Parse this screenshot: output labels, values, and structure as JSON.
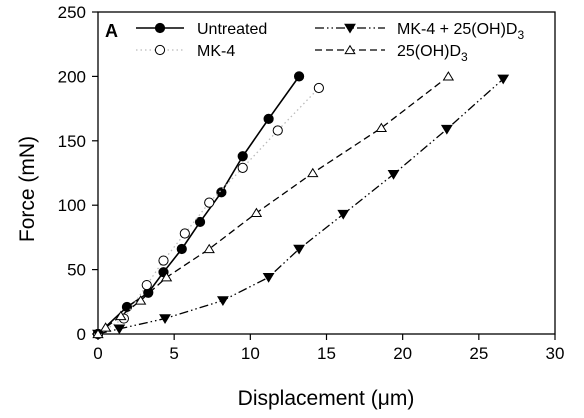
{
  "chart_data": {
    "type": "line",
    "panel_label": "A",
    "xlabel": "Displacement (μm)",
    "ylabel": "Force (mN)",
    "xlim": [
      0,
      30
    ],
    "ylim": [
      0,
      250
    ],
    "xticks": [
      0,
      5,
      10,
      15,
      20,
      25,
      30
    ],
    "yticks": [
      0,
      50,
      100,
      150,
      200,
      250
    ],
    "grid": false,
    "legend_position": "top",
    "series": [
      {
        "name": "Untreated",
        "name_base": "Untreated",
        "name_sub": "",
        "name_tail": "",
        "marker": "filled-circle",
        "line": "solid",
        "color": "#000000",
        "x": [
          0,
          1.9,
          3.3,
          4.3,
          5.5,
          6.7,
          8.1,
          9.5,
          11.2,
          13.2
        ],
        "y": [
          0,
          21,
          32,
          48,
          66,
          87,
          110,
          138,
          167,
          200
        ]
      },
      {
        "name": "MK-4",
        "name_base": "MK-4",
        "name_sub": "",
        "name_tail": "",
        "marker": "open-circle",
        "line": "dotted",
        "color": "#bbbbbb",
        "x": [
          0,
          1.7,
          3.2,
          4.3,
          5.7,
          7.3,
          9.5,
          11.8,
          14.5
        ],
        "y": [
          0,
          12,
          38,
          57,
          78,
          102,
          129,
          158,
          191
        ]
      },
      {
        "name": "MK-4 + 25(OH)D3",
        "name_base": "MK-4 + 25(OH)D",
        "name_sub": "3",
        "name_tail": "",
        "marker": "filled-triangle-down",
        "line": "dash-dot-dot",
        "color": "#000000",
        "x": [
          0,
          1.4,
          4.4,
          8.2,
          11.2,
          13.2,
          16.1,
          19.4,
          22.9,
          26.6
        ],
        "y": [
          0,
          4,
          12,
          26,
          44,
          66,
          93,
          124,
          159,
          198
        ]
      },
      {
        "name": "25(OH)D3",
        "name_base": "25(OH)D",
        "name_sub": "3",
        "name_tail": "",
        "marker": "open-triangle-up",
        "line": "dashed",
        "color": "#000000",
        "x": [
          0,
          0.5,
          1.5,
          2.8,
          4.5,
          7.3,
          10.4,
          14.1,
          18.6,
          23.0
        ],
        "y": [
          0,
          5,
          14,
          26,
          44,
          66,
          94,
          125,
          160,
          200
        ]
      }
    ]
  }
}
